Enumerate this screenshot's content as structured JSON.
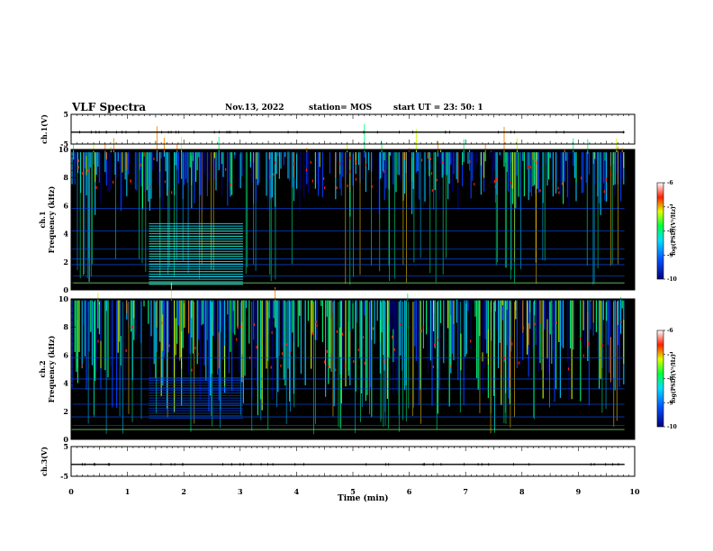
{
  "header": {
    "title": "VLF Spectra",
    "date": "Nov.13, 2022",
    "station": "station= MOS",
    "start": "start  UT  =   23: 50: 1"
  },
  "colors": {
    "background": "#000000",
    "spectrum": [
      "#000080",
      "#0040ff",
      "#00c8ff",
      "#00ff80",
      "#c8ff00",
      "#ff8000",
      "#ff0000",
      "#ffffff"
    ]
  },
  "chart_data": [
    {
      "type": "line",
      "ylabel": "ch.1(V)",
      "x": [
        0,
        10
      ],
      "y": [
        -1,
        -1
      ],
      "xlim": [
        0,
        10
      ],
      "ylim": [
        -5,
        5
      ],
      "yticks": [
        "5",
        "-5"
      ]
    },
    {
      "type": "heatmap",
      "ylabel": "ch.1 Frequency (kHz)",
      "xlim": [
        0,
        10
      ],
      "ylim": [
        0,
        10
      ],
      "yticks": [
        "0",
        "2",
        "4",
        "6",
        "8",
        "10"
      ],
      "colorbar": {
        "label": "log(PSD)(V²/Hz)",
        "range": [
          -10,
          -6
        ],
        "ticks": [
          "-6",
          "-7",
          "-8",
          "-9",
          "-10"
        ]
      }
    },
    {
      "type": "heatmap",
      "ylabel": "ch.2 Frequency (kHz)",
      "xlim": [
        0,
        10
      ],
      "ylim": [
        0,
        10
      ],
      "yticks": [
        "0",
        "2",
        "4",
        "6",
        "8",
        "10"
      ],
      "colorbar": {
        "label": "log(PSD)(V²/Hz)",
        "range": [
          -10,
          -6
        ],
        "ticks": [
          "-6",
          "-7",
          "-8",
          "-9",
          "-10"
        ]
      }
    },
    {
      "type": "line",
      "ylabel": "ch.3(V)",
      "x": [
        0,
        10
      ],
      "y": [
        -1,
        -1
      ],
      "xlim": [
        0,
        10
      ],
      "ylim": [
        -5,
        5
      ],
      "yticks": [
        "5",
        "-5"
      ]
    }
  ],
  "xaxis": {
    "label": "Time (min)",
    "ticks": [
      "0",
      "1",
      "2",
      "3",
      "4",
      "5",
      "6",
      "7",
      "8",
      "9",
      "10"
    ]
  }
}
